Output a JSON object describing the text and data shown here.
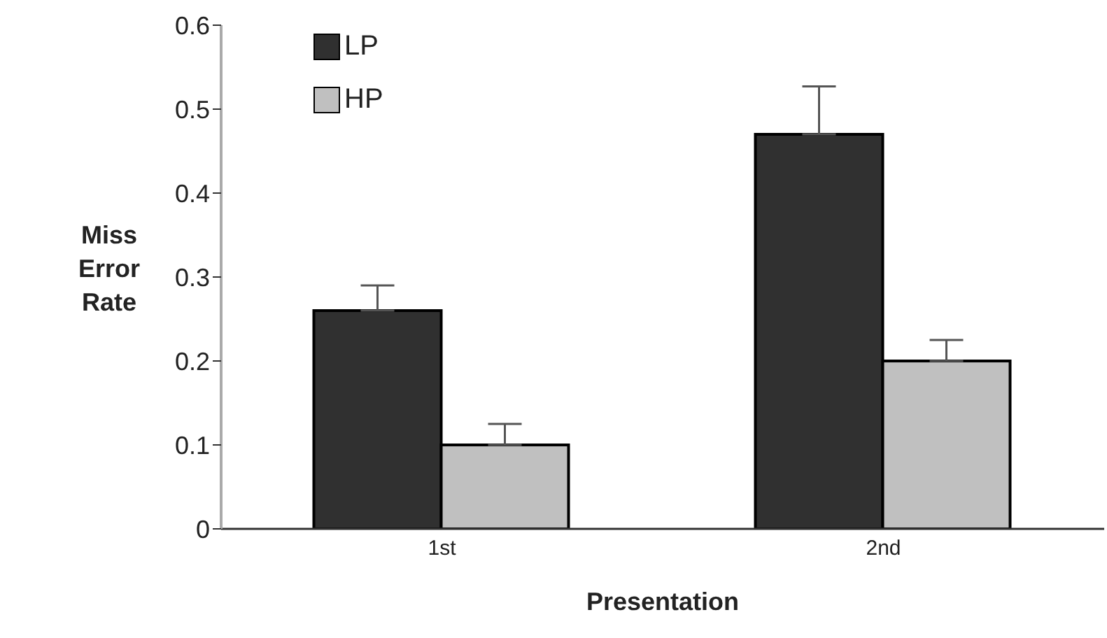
{
  "chart_data": {
    "type": "bar",
    "xlabel": "Presentation",
    "ylabel": "Miss Error Rate",
    "categories": [
      "1st",
      "2nd"
    ],
    "series": [
      {
        "name": "LP",
        "color": "#303030",
        "values": [
          0.26,
          0.47
        ],
        "errors": [
          [
            0.26,
            0.29
          ],
          [
            0.47,
            0.527
          ]
        ]
      },
      {
        "name": "HP",
        "color": "#c0c0c0",
        "values": [
          0.1,
          0.2
        ],
        "errors": [
          [
            0.1,
            0.125
          ],
          [
            0.2,
            0.225
          ]
        ]
      }
    ],
    "ylim": [
      0,
      0.6
    ],
    "yticks": [
      0,
      0.1,
      0.2,
      0.3,
      0.4,
      0.5,
      0.6
    ],
    "legend": "top left",
    "grid": false
  }
}
